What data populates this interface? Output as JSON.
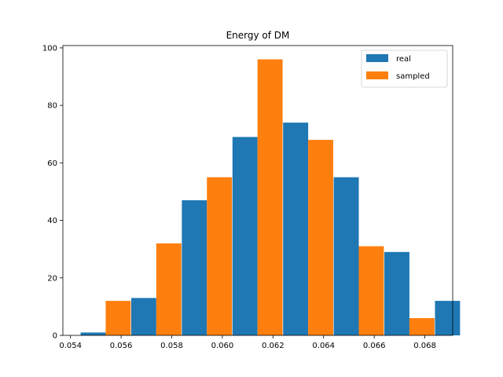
{
  "chart_data": {
    "type": "bar",
    "title": "Energy of DM",
    "xlabel": "",
    "ylabel": "",
    "xlim": [
      0.0537,
      0.0691
    ],
    "ylim": [
      0,
      100.8
    ],
    "x_ticks": [
      0.054,
      0.056,
      0.058,
      0.06,
      0.062,
      0.064,
      0.066,
      0.068
    ],
    "x_tick_labels": [
      "0.054",
      "0.056",
      "0.058",
      "0.060",
      "0.062",
      "0.064",
      "0.066",
      "0.068"
    ],
    "y_ticks": [
      0,
      20,
      40,
      60,
      80,
      100
    ],
    "y_tick_labels": [
      "0",
      "20",
      "40",
      "60",
      "80",
      "100"
    ],
    "bins": [
      0.0544,
      0.0564,
      0.0584,
      0.0604,
      0.0624,
      0.0644,
      0.0664,
      0.0684
    ],
    "bin_width": 0.00198,
    "legend_position": "top-right",
    "grid": false,
    "series": [
      {
        "name": "real",
        "color": "#1f77b4",
        "values": [
          1,
          13,
          47,
          69,
          74,
          55,
          29,
          12
        ]
      },
      {
        "name": "sampled",
        "color": "#ff7f0e",
        "values": [
          12,
          32,
          55,
          96,
          68,
          31,
          6,
          0
        ]
      }
    ]
  }
}
